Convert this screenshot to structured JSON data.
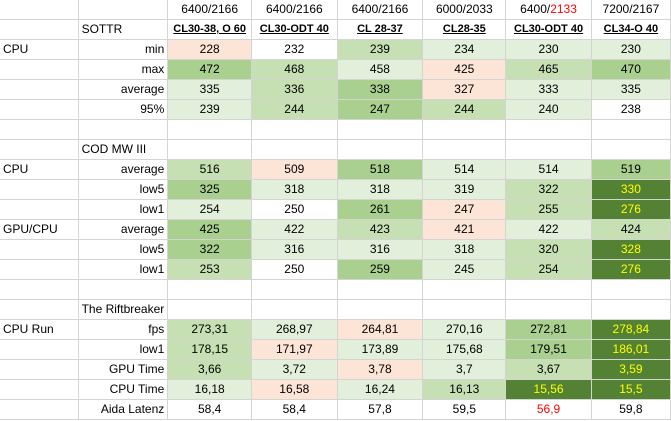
{
  "columns": [
    {
      "top_a": "6400/2166",
      "top_b": "",
      "sub": "CL30-38, O 60"
    },
    {
      "top_a": "6400/2166",
      "top_b": "",
      "sub": "CL30-ODT 40"
    },
    {
      "top_a": "6400/2166",
      "top_b": "",
      "sub": "CL 28-37"
    },
    {
      "top_a": "6000/2033",
      "top_b": "",
      "sub": "CL28-35"
    },
    {
      "top_a": "6400/",
      "top_b": "2133",
      "sub": "CL30-ODT 40"
    },
    {
      "top_a": "7200/2167",
      "top_b": "",
      "sub": "CL34-O 40"
    }
  ],
  "rows": [
    {
      "type": "subhdr",
      "a": "",
      "b": "SOTTR"
    },
    {
      "type": "data",
      "a": "CPU",
      "b": "min",
      "cells": [
        [
          "228",
          "p",
          ""
        ],
        [
          "232",
          "w",
          ""
        ],
        [
          "239",
          "m",
          ""
        ],
        [
          "234",
          "l",
          ""
        ],
        [
          "230",
          "l",
          ""
        ],
        [
          "230",
          "l",
          ""
        ]
      ]
    },
    {
      "type": "data",
      "a": "",
      "b": "max",
      "cells": [
        [
          "472",
          "d",
          ""
        ],
        [
          "468",
          "m",
          ""
        ],
        [
          "458",
          "l",
          ""
        ],
        [
          "425",
          "p",
          ""
        ],
        [
          "465",
          "m",
          ""
        ],
        [
          "470",
          "d",
          ""
        ]
      ]
    },
    {
      "type": "data",
      "a": "",
      "b": "average",
      "cells": [
        [
          "335",
          "l",
          ""
        ],
        [
          "336",
          "m",
          ""
        ],
        [
          "338",
          "d",
          ""
        ],
        [
          "327",
          "p",
          ""
        ],
        [
          "333",
          "l",
          ""
        ],
        [
          "335",
          "l",
          ""
        ]
      ]
    },
    {
      "type": "data",
      "a": "",
      "b": "95%",
      "cells": [
        [
          "239",
          "l",
          ""
        ],
        [
          "244",
          "m",
          ""
        ],
        [
          "247",
          "d",
          ""
        ],
        [
          "244",
          "m",
          ""
        ],
        [
          "240",
          "l",
          ""
        ],
        [
          "238",
          "w",
          ""
        ]
      ]
    },
    {
      "type": "blank"
    },
    {
      "type": "subhdr",
      "a": "",
      "b": "COD MW III"
    },
    {
      "type": "data",
      "a": "CPU",
      "b": "average",
      "cells": [
        [
          "516",
          "m",
          ""
        ],
        [
          "509",
          "p",
          ""
        ],
        [
          "518",
          "d",
          ""
        ],
        [
          "514",
          "l",
          ""
        ],
        [
          "514",
          "l",
          ""
        ],
        [
          "519",
          "d",
          ""
        ]
      ]
    },
    {
      "type": "data",
      "a": "",
      "b": "low5",
      "cells": [
        [
          "325",
          "d",
          ""
        ],
        [
          "318",
          "l",
          ""
        ],
        [
          "318",
          "l",
          ""
        ],
        [
          "319",
          "l",
          ""
        ],
        [
          "322",
          "m",
          ""
        ],
        [
          "330",
          "g",
          "yel"
        ]
      ]
    },
    {
      "type": "data",
      "a": "",
      "b": "low1",
      "cells": [
        [
          "254",
          "l",
          ""
        ],
        [
          "250",
          "w",
          ""
        ],
        [
          "261",
          "d",
          ""
        ],
        [
          "247",
          "p",
          ""
        ],
        [
          "255",
          "m",
          ""
        ],
        [
          "276",
          "g",
          "yel"
        ]
      ]
    },
    {
      "type": "data",
      "a": "GPU/CPU",
      "b": "average",
      "cells": [
        [
          "425",
          "d",
          ""
        ],
        [
          "422",
          "l",
          ""
        ],
        [
          "423",
          "m",
          ""
        ],
        [
          "421",
          "p",
          ""
        ],
        [
          "422",
          "l",
          ""
        ],
        [
          "424",
          "m",
          ""
        ]
      ]
    },
    {
      "type": "data",
      "a": "",
      "b": "low5",
      "cells": [
        [
          "322",
          "d",
          ""
        ],
        [
          "316",
          "l",
          ""
        ],
        [
          "316",
          "l",
          ""
        ],
        [
          "318",
          "l",
          ""
        ],
        [
          "320",
          "m",
          ""
        ],
        [
          "328",
          "g",
          "yel"
        ]
      ]
    },
    {
      "type": "data",
      "a": "",
      "b": "low1",
      "cells": [
        [
          "253",
          "m",
          ""
        ],
        [
          "250",
          "w",
          ""
        ],
        [
          "259",
          "d",
          ""
        ],
        [
          "245",
          "l",
          ""
        ],
        [
          "254",
          "m",
          ""
        ],
        [
          "276",
          "g",
          "yel"
        ]
      ]
    },
    {
      "type": "blank"
    },
    {
      "type": "subhdr",
      "a": "",
      "b": "The Riftbreaker"
    },
    {
      "type": "data",
      "a": "CPU Run",
      "b": "fps",
      "cells": [
        [
          "273,31",
          "m",
          ""
        ],
        [
          "268,97",
          "l",
          ""
        ],
        [
          "264,81",
          "p",
          ""
        ],
        [
          "270,16",
          "l",
          ""
        ],
        [
          "272,81",
          "d",
          ""
        ],
        [
          "278,84",
          "g",
          "yel"
        ]
      ]
    },
    {
      "type": "data",
      "a": "",
      "b": "low1",
      "cells": [
        [
          "178,15",
          "m",
          ""
        ],
        [
          "171,97",
          "p",
          ""
        ],
        [
          "173,89",
          "l",
          ""
        ],
        [
          "175,68",
          "l",
          ""
        ],
        [
          "179,51",
          "d",
          ""
        ],
        [
          "186,01",
          "g",
          "yel"
        ]
      ]
    },
    {
      "type": "data",
      "a": "",
      "b": "GPU Time",
      "cells": [
        [
          "3,66",
          "m",
          ""
        ],
        [
          "3,72",
          "l",
          ""
        ],
        [
          "3,78",
          "p",
          ""
        ],
        [
          "3,7",
          "l",
          ""
        ],
        [
          "3,67",
          "m",
          ""
        ],
        [
          "3,59",
          "g",
          "yel"
        ]
      ]
    },
    {
      "type": "data",
      "a": "",
      "b": "CPU Time",
      "cells": [
        [
          "16,18",
          "l",
          ""
        ],
        [
          "16,58",
          "p",
          ""
        ],
        [
          "16,24",
          "l",
          ""
        ],
        [
          "16,13",
          "m",
          ""
        ],
        [
          "15,56",
          "g",
          "yel"
        ],
        [
          "15,5",
          "g",
          "yel"
        ]
      ]
    },
    {
      "type": "data",
      "a": "",
      "b": "Aida Latenz",
      "cells": [
        [
          "58,4",
          "w",
          ""
        ],
        [
          "58,4",
          "w",
          ""
        ],
        [
          "57,8",
          "w",
          ""
        ],
        [
          "59,5",
          "w",
          ""
        ],
        [
          "56,9",
          "w",
          "red"
        ],
        [
          "59,8",
          "w",
          ""
        ]
      ]
    }
  ]
}
